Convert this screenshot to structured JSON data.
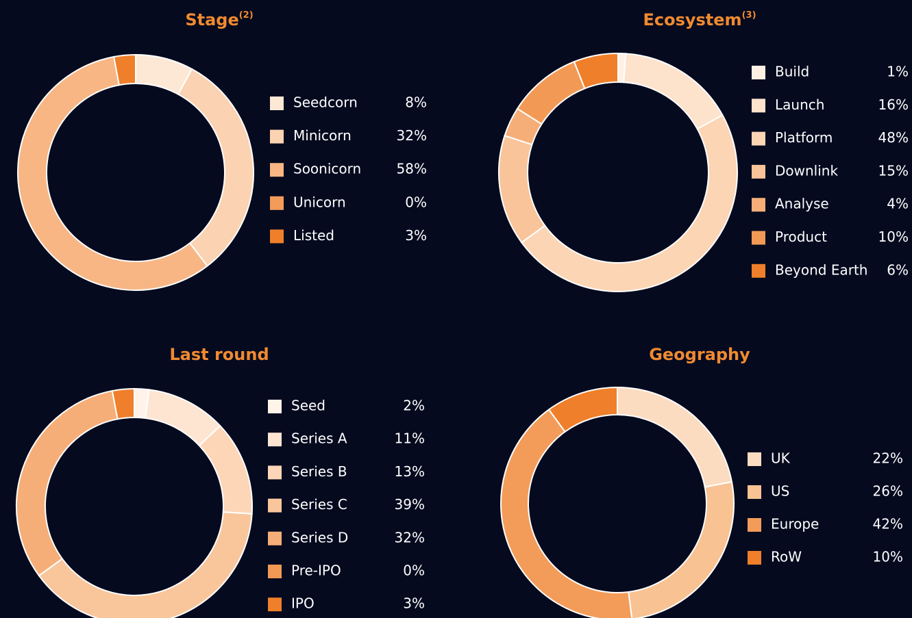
{
  "chart_data": [
    {
      "type": "pie",
      "title": "Stage",
      "title_note": "(2)",
      "categories": [
        "Seedcorn",
        "Minicorn",
        "Soonicorn",
        "Unicorn",
        "Listed"
      ],
      "values": [
        8,
        32,
        58,
        0,
        3
      ],
      "value_labels": [
        "8%",
        "32%",
        "58%",
        "0%",
        "3%"
      ],
      "colors": [
        "#fde8d6",
        "#fbd3b2",
        "#f7b684",
        "#f39c5a",
        "#ef7f2a"
      ]
    },
    {
      "type": "pie",
      "title": "Ecosystem",
      "title_note": "(3)",
      "categories": [
        "Build",
        "Launch",
        "Platform",
        "Downlink",
        "Analyse",
        "Product",
        "Beyond Earth"
      ],
      "values": [
        1,
        16,
        48,
        15,
        4,
        10,
        6
      ],
      "value_labels": [
        "1%",
        "16%",
        "48%",
        "15%",
        "4%",
        "10%",
        "6%"
      ],
      "colors": [
        "#fff0e4",
        "#fde2cc",
        "#fcd5b5",
        "#f9c49a",
        "#f6ae78",
        "#f29a55",
        "#ef7f2a"
      ]
    },
    {
      "type": "pie",
      "title": "Last round",
      "categories": [
        "Seed",
        "Series A",
        "Series B",
        "Series C",
        "Series D",
        "Pre-IPO",
        "IPO"
      ],
      "values": [
        2,
        11,
        13,
        39,
        32,
        0,
        3
      ],
      "value_labels": [
        "2%",
        "11%",
        "13%",
        "39%",
        "32%",
        "0%",
        "3%"
      ],
      "colors": [
        "#fff3ea",
        "#fde5d1",
        "#fcd6b7",
        "#f9c69c",
        "#f6ae78",
        "#f29a55",
        "#ef7f2a"
      ]
    },
    {
      "type": "pie",
      "title": "Geography",
      "categories": [
        "UK",
        "US",
        "Europe",
        "RoW"
      ],
      "values": [
        22,
        26,
        42,
        10
      ],
      "value_labels": [
        "22%",
        "26%",
        "42%",
        "10%"
      ],
      "colors": [
        "#fcdcc0",
        "#f8c293",
        "#f39c5a",
        "#ef7f2a"
      ]
    }
  ]
}
